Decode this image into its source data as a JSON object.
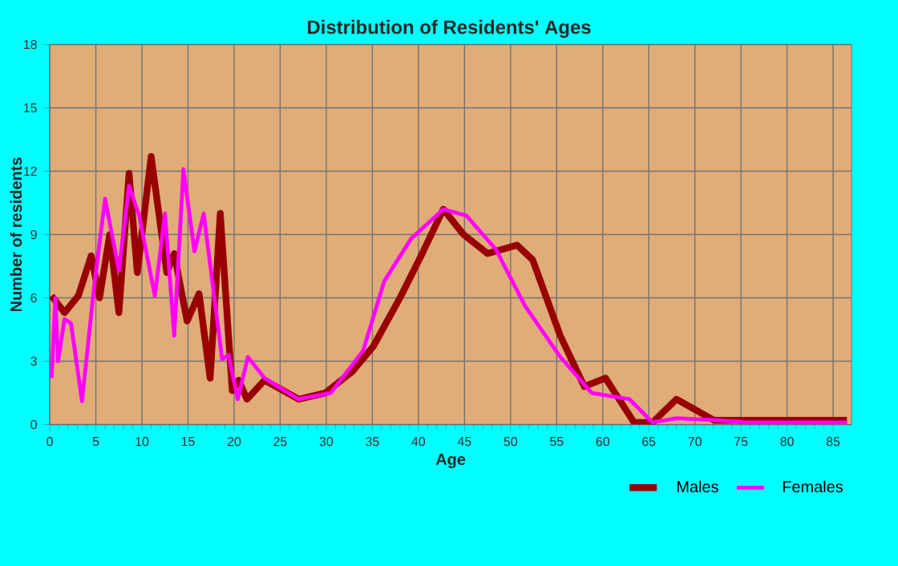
{
  "chart_data": {
    "type": "line",
    "title": "Distribution of Residents' Ages",
    "xlabel": "Age",
    "ylabel": "Number of residents",
    "xlim": [
      0,
      87
    ],
    "xticks": [
      0,
      5,
      10,
      15,
      20,
      25,
      30,
      35,
      40,
      45,
      50,
      55,
      60,
      65,
      70,
      75,
      80,
      85
    ],
    "ylim": [
      0,
      18
    ],
    "yticks": [
      0,
      3,
      6,
      9,
      12,
      15,
      18
    ],
    "grid": true,
    "legend": "bottom right",
    "marker": "none",
    "line_style": "solid",
    "series": [
      {
        "name": "Males",
        "color": "#990000",
        "x": [
          0.2,
          1.6,
          3.1,
          4.5,
          5.4,
          6.5,
          7.5,
          8.6,
          9.5,
          11.0,
          12.7,
          13.5,
          14.9,
          16.2,
          17.4,
          18.5,
          19.8,
          20.5,
          21.4,
          23.3,
          27.0,
          29.9,
          32.8,
          35.1,
          38.0,
          40.3,
          42.7,
          44.9,
          47.5,
          50.7,
          52.4,
          55.4,
          58.0,
          60.3,
          63.4,
          65.4,
          68.0,
          72.1,
          75.6,
          86.5
        ],
        "values": [
          6.1,
          5.3,
          6.1,
          8.0,
          6.0,
          9.0,
          5.3,
          11.9,
          7.2,
          12.7,
          7.2,
          8.1,
          4.9,
          6.2,
          2.2,
          10.0,
          1.6,
          2.1,
          1.2,
          2.1,
          1.2,
          1.5,
          2.5,
          3.7,
          6.0,
          8.0,
          10.2,
          9.0,
          8.1,
          8.5,
          7.8,
          4.2,
          1.8,
          2.2,
          0.1,
          0.1,
          1.2,
          0.2,
          0.2,
          0.2
        ]
      },
      {
        "name": "Females",
        "color": "#ff00ff",
        "x": [
          0.2,
          0.6,
          0.9,
          1.6,
          2.3,
          3.5,
          4.8,
          6.0,
          7.5,
          8.6,
          9.7,
          11.4,
          12.5,
          13.5,
          14.5,
          15.7,
          16.7,
          18.7,
          19.4,
          20.4,
          21.5,
          23.3,
          27.0,
          30.5,
          34.0,
          36.3,
          39.2,
          42.7,
          45.2,
          48.4,
          51.6,
          55.4,
          58.8,
          62.9,
          65.4,
          68.0,
          72.7,
          75.6,
          86.5
        ],
        "values": [
          2.2,
          6.0,
          3.0,
          5.0,
          4.8,
          1.1,
          6.5,
          10.7,
          7.3,
          11.3,
          9.9,
          6.1,
          10.0,
          4.2,
          12.1,
          8.2,
          10.0,
          3.1,
          3.3,
          1.2,
          3.2,
          2.2,
          1.2,
          1.5,
          3.5,
          6.8,
          8.8,
          10.2,
          9.9,
          8.3,
          5.6,
          3.2,
          1.5,
          1.2,
          0.1,
          0.3,
          0.2,
          0.1,
          0.1
        ]
      }
    ]
  }
}
